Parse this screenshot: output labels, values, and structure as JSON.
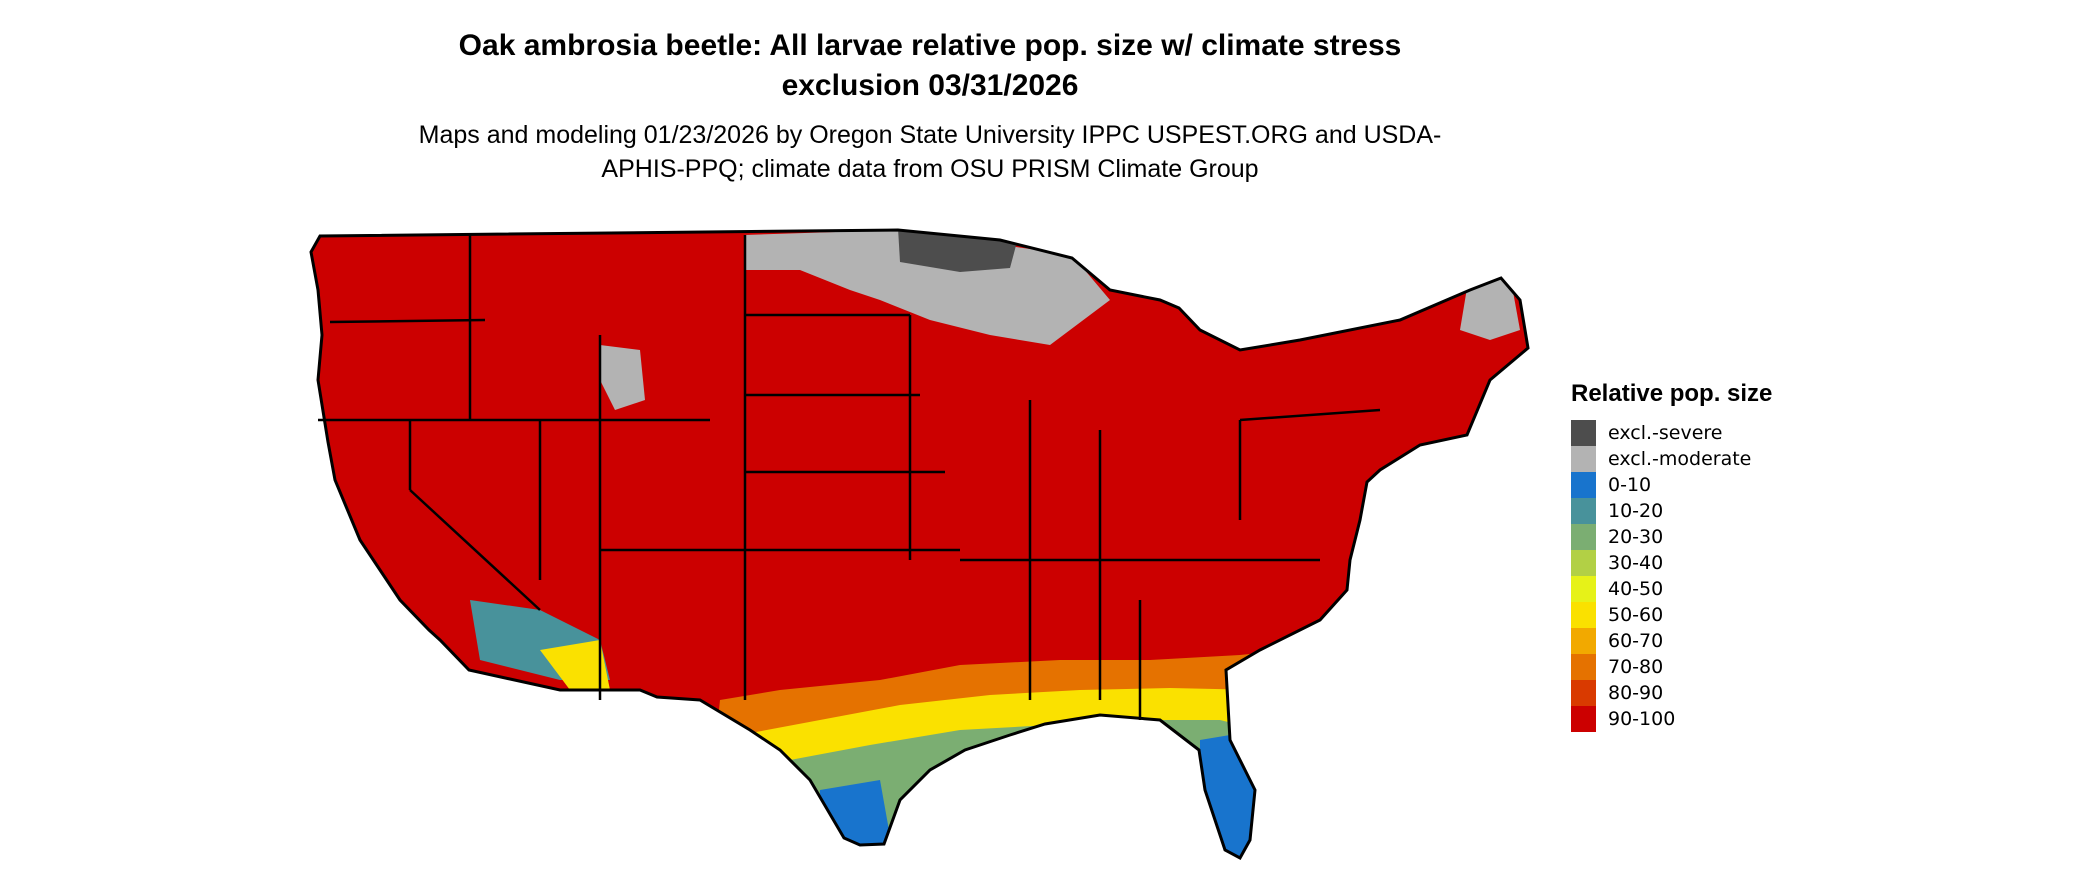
{
  "title": "Oak ambrosia beetle: All larvae relative pop. size w/ climate stress exclusion 03/31/2026",
  "subtitle": "Maps and modeling 01/23/2026 by Oregon State University IPPC USPEST.ORG and USDA-APHIS-PPQ; climate data from OSU PRISM Climate Group",
  "legend": {
    "title": "Relative pop. size",
    "items": [
      {
        "label": "excl.-severe",
        "color": "#4d4d4d"
      },
      {
        "label": "excl.-moderate",
        "color": "#b3b3b3"
      },
      {
        "label": "0-10",
        "color": "#1874cd"
      },
      {
        "label": "10-20",
        "color": "#48929b"
      },
      {
        "label": "20-30",
        "color": "#7bae72"
      },
      {
        "label": "30-40",
        "color": "#b2d045"
      },
      {
        "label": "40-50",
        "color": "#e6f218"
      },
      {
        "label": "50-60",
        "color": "#fae100"
      },
      {
        "label": "60-70",
        "color": "#f2a900"
      },
      {
        "label": "70-80",
        "color": "#e57200"
      },
      {
        "label": "80-90",
        "color": "#d93a00"
      },
      {
        "label": "90-100",
        "color": "#cc0000"
      }
    ]
  },
  "map": {
    "region": "Contiguous United States",
    "dominant_class": "90-100"
  }
}
